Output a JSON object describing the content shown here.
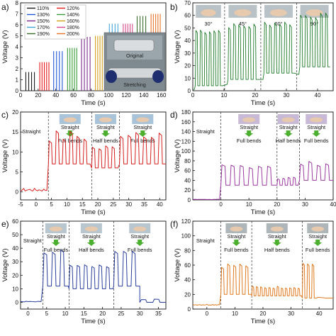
{
  "chart_data": [
    {
      "panel": "a)",
      "type": "line",
      "xlabel": "Time (s)",
      "ylabel": "Voltage (V)",
      "xlim": [
        0,
        165
      ],
      "ylim": [
        0,
        8
      ],
      "xticks": [
        0,
        20,
        40,
        60,
        80,
        100,
        120,
        140,
        160
      ],
      "yticks": [
        0,
        1,
        2,
        3,
        4,
        5,
        6,
        7,
        8
      ],
      "legend": [
        "110%",
        "120%",
        "130%",
        "140%",
        "150%",
        "160%",
        "170%",
        "180%",
        "190%",
        "200%"
      ],
      "series_colors": [
        "#1a1a1a",
        "#e41a1c",
        "#2155d6",
        "#3a9b3a",
        "#7a2a8a",
        "#d4a017",
        "#3fa7d6",
        "#d64a8c",
        "#3a6b2a",
        "#e8742a"
      ],
      "series_peaks": [
        1.7,
        2.6,
        3.6,
        3.9,
        4.9,
        5.0,
        6.1,
        6.1,
        6.8,
        7.0
      ],
      "inset_labels": [
        "Original",
        "Stretching"
      ]
    },
    {
      "panel": "b)",
      "type": "line",
      "xlabel": "Time (s)",
      "ylabel": "Voltage (V)",
      "xlim": [
        0,
        45
      ],
      "ylim": [
        0,
        70
      ],
      "xticks": [
        0,
        10,
        20,
        30,
        40
      ],
      "yticks": [
        0,
        10,
        20,
        30,
        40,
        50,
        60,
        70
      ],
      "color": "#1f7a2a",
      "segments": [
        {
          "label": "30°",
          "peak": 48
        },
        {
          "label": "45°",
          "peak": 52
        },
        {
          "label": "60°",
          "peak": 54
        },
        {
          "label": "90°",
          "peak": 60
        }
      ]
    },
    {
      "panel": "c)",
      "type": "line",
      "xlabel": "Time (s)",
      "ylabel": "Voltage (V)",
      "xlim": [
        -5,
        42
      ],
      "ylim": [
        -2,
        20
      ],
      "xticks": [
        -5,
        0,
        5,
        10,
        15,
        20,
        25,
        30,
        35,
        40
      ],
      "yticks": [
        0,
        5,
        10,
        15,
        20
      ],
      "color": "#d62020",
      "annotations": [
        "Straight",
        "Straight",
        "Full bends",
        "Straight",
        "Half bends",
        "Straight",
        "Full bends"
      ]
    },
    {
      "panel": "d)",
      "type": "line",
      "xlabel": "Time (s)",
      "ylabel": "Voltage (V)",
      "xlim": [
        -10,
        40
      ],
      "ylim": [
        0,
        180
      ],
      "xticks": [
        0,
        10,
        20,
        30,
        40
      ],
      "yticks": [
        0,
        20,
        40,
        60,
        80,
        100,
        120,
        140,
        160,
        180
      ],
      "color": "#9b3aa0",
      "annotations": [
        "Straight",
        "Straight",
        "Full bends",
        "Straight",
        "Half bends",
        "Straight",
        "Full bends"
      ]
    },
    {
      "panel": "e)",
      "type": "line",
      "xlabel": "Time (s)",
      "ylabel": "Voltage (V)",
      "xlim": [
        -2,
        37
      ],
      "ylim": [
        -5,
        60
      ],
      "xticks": [
        0,
        5,
        10,
        15,
        20,
        25,
        30,
        35
      ],
      "yticks": [
        0,
        10,
        20,
        30,
        40,
        50,
        60
      ],
      "color": "#2a3f9b",
      "annotations": [
        "Straight",
        "Straight",
        "Full bends",
        "Straight",
        "Half bends",
        "Straight",
        "Full bends"
      ]
    },
    {
      "panel": "(f)",
      "type": "line",
      "xlabel": "Time (s)",
      "ylabel": "Voltage (V)",
      "xlim": [
        -5,
        45
      ],
      "ylim": [
        0,
        120
      ],
      "xticks": [
        0,
        10,
        20,
        30,
        40
      ],
      "yticks": [
        0,
        20,
        40,
        60,
        80,
        100,
        120
      ],
      "color": "#e07a20",
      "annotations": [
        "Straight",
        "Straight",
        "Full bends",
        "Straight",
        "Half bends",
        "Straight",
        "Full bends"
      ]
    }
  ]
}
